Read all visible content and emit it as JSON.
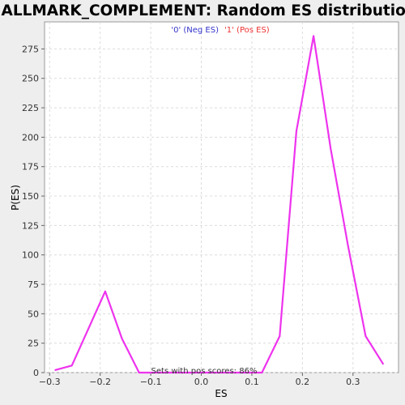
{
  "chart_data": {
    "type": "line",
    "title": "HALLMARK_COMPLEMENT: Random ES distribution",
    "xlabel": "ES",
    "ylabel": "P(ES)",
    "xlim": [
      -0.31,
      0.39
    ],
    "ylim": [
      0,
      298
    ],
    "xticks": [
      -0.3,
      -0.2,
      -0.1,
      0.0,
      0.1,
      0.2,
      0.3
    ],
    "xtick_labels": [
      "−0.3",
      "−0.2",
      "−0.1",
      "0.0",
      "0.1",
      "0.2",
      "0.3"
    ],
    "yticks": [
      0,
      25,
      50,
      75,
      100,
      125,
      150,
      175,
      200,
      225,
      250,
      275
    ],
    "ytick_labels": [
      "0",
      "25",
      "50",
      "75",
      "100",
      "125",
      "150",
      "175",
      "200",
      "225",
      "250",
      "275"
    ],
    "grid": true,
    "legend": {
      "placement": "top-center",
      "entries": [
        {
          "label": "'0' (Neg ES)",
          "color": "#3333cc"
        },
        {
          "label": "'1' (Pos ES)",
          "color": "#ee3333"
        }
      ]
    },
    "annotation": "Sets with pos scores: 86%",
    "series": [
      {
        "color": "#ee33ee",
        "x": [
          -0.29,
          -0.256,
          -0.19,
          -0.157,
          -0.123,
          0.12,
          0.155,
          0.188,
          0.222,
          0.256,
          0.29,
          0.325,
          0.36
        ],
        "y": [
          2,
          6,
          69,
          29,
          0,
          0,
          31,
          205,
          286,
          190,
          108,
          31,
          7
        ]
      }
    ]
  }
}
